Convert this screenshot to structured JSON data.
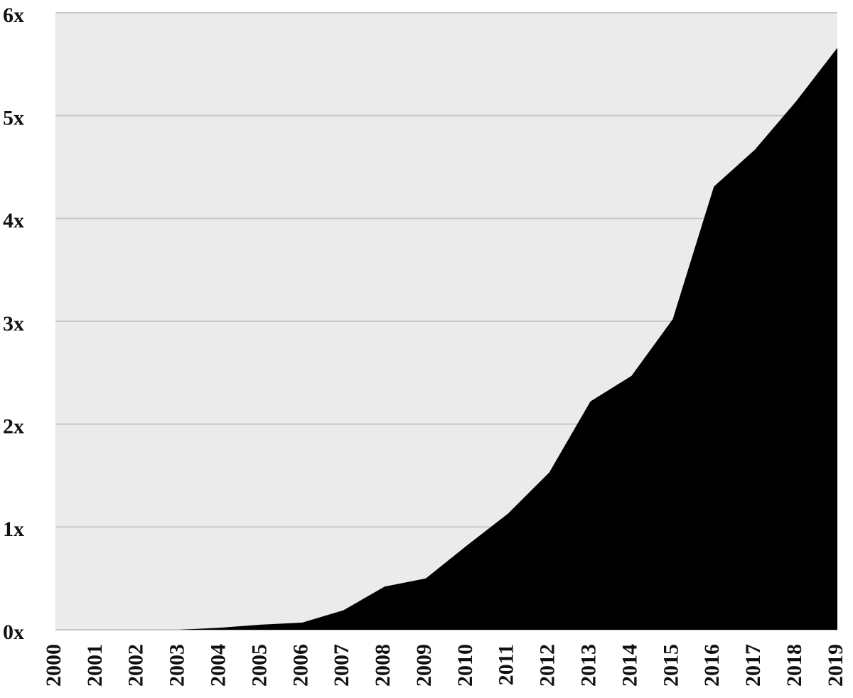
{
  "chart_data": {
    "type": "area",
    "x": [
      2000,
      2001,
      2002,
      2003,
      2004,
      2005,
      2006,
      2007,
      2008,
      2009,
      2010,
      2011,
      2012,
      2013,
      2014,
      2015,
      2016,
      2017,
      2018,
      2019
    ],
    "xlim": [
      2000,
      2019
    ],
    "values": [
      0,
      0,
      0,
      0,
      0.02,
      0.05,
      0.07,
      0.19,
      0.42,
      0.5,
      0.82,
      1.13,
      1.53,
      2.22,
      2.47,
      3.02,
      4.31,
      4.67,
      5.14,
      5.66
    ],
    "color": "#000000",
    "background": "#ebebeb",
    "ylim": [
      0,
      6
    ],
    "yticks": [
      {
        "value": 0,
        "label": "0x"
      },
      {
        "value": 1,
        "label": "1x"
      },
      {
        "value": 2,
        "label": "2x"
      },
      {
        "value": 3,
        "label": "3x"
      },
      {
        "value": 4,
        "label": "4x"
      },
      {
        "value": 5,
        "label": "5x"
      },
      {
        "value": 6,
        "label": "6x"
      }
    ],
    "grid": true
  }
}
